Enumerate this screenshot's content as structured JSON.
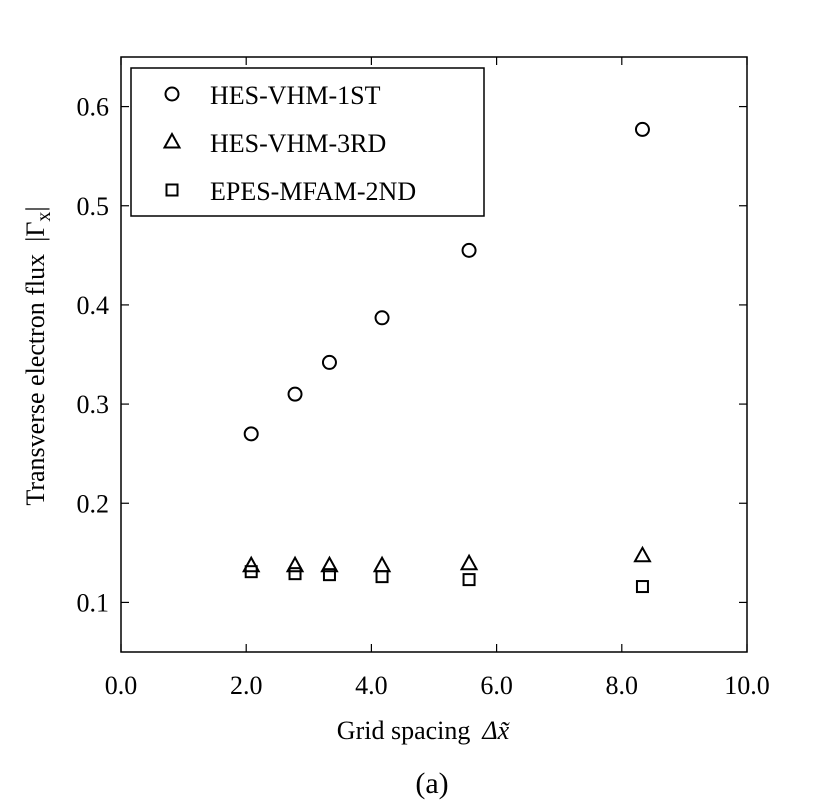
{
  "chart_data": {
    "type": "scatter",
    "xlabel": "Grid spacing",
    "xlabel_symbol": "Δx̃",
    "ylabel": "Transverse electron flux",
    "ylabel_symbol": "|Γ",
    "ylabel_subscript": "x",
    "ylabel_close": "|",
    "xlim": [
      0.0,
      10.0
    ],
    "ylim": [
      0.05,
      0.65
    ],
    "xticks": [
      0.0,
      2.0,
      4.0,
      6.0,
      8.0,
      10.0
    ],
    "xtick_labels": [
      "0.0",
      "2.0",
      "4.0",
      "6.0",
      "8.0",
      "10.0"
    ],
    "yticks": [
      0.1,
      0.2,
      0.3,
      0.4,
      0.5,
      0.6
    ],
    "ytick_labels": [
      "0.1",
      "0.2",
      "0.3",
      "0.4",
      "0.5",
      "0.6"
    ],
    "grid": false,
    "legend_position": "top-left",
    "caption": "(a)",
    "series": [
      {
        "name": "HES-VHM-1ST",
        "marker": "circle",
        "x": [
          2.08,
          2.78,
          3.33,
          4.17,
          5.56,
          8.33
        ],
        "y": [
          0.27,
          0.31,
          0.342,
          0.387,
          0.455,
          0.577
        ]
      },
      {
        "name": "HES-VHM-3RD",
        "marker": "triangle",
        "x": [
          2.08,
          2.78,
          3.33,
          4.17,
          5.56,
          8.33
        ],
        "y": [
          0.137,
          0.137,
          0.137,
          0.137,
          0.139,
          0.147
        ]
      },
      {
        "name": "EPES-MFAM-2ND",
        "marker": "square",
        "x": [
          2.08,
          2.78,
          3.33,
          4.17,
          5.56,
          8.33
        ],
        "y": [
          0.131,
          0.129,
          0.128,
          0.126,
          0.123,
          0.116
        ]
      }
    ],
    "colors": {
      "marker": "#000000",
      "axis": "#000000",
      "background": "#ffffff"
    }
  }
}
